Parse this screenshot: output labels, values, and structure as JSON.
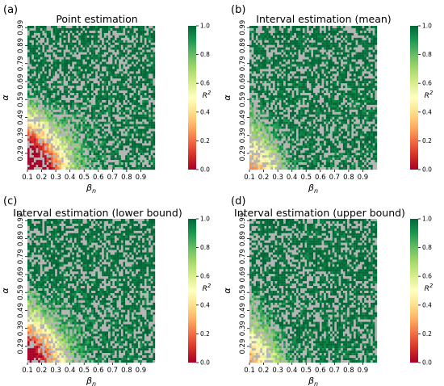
{
  "colors": {
    "missing": "#b4b4b4",
    "colormap": [
      "#a50026",
      "#d73027",
      "#f46d43",
      "#fdae61",
      "#fee08b",
      "#ffffbf",
      "#d9ef8b",
      "#a6d96a",
      "#66bd63",
      "#1a9850",
      "#006837"
    ]
  },
  "chart_data": [
    {
      "type": "heatmap",
      "letter": "(a)",
      "title": "Point estimation",
      "xlabel": "β",
      "xlabel_sub": "n",
      "ylabel": "α",
      "xlim": [
        0.1,
        1.0
      ],
      "ylim": [
        0.2,
        1.0
      ],
      "xticks": [
        "0.1",
        "0.2",
        "0.3",
        "0.4",
        "0.5",
        "0.6",
        "0.7",
        "0.8",
        "0.9"
      ],
      "yticks": [
        "0.29",
        "0.39",
        "0.49",
        "0.59",
        "0.69",
        "0.79",
        "0.89",
        "0.99"
      ],
      "grid_cols": 60,
      "grid_rows": 60,
      "missing_fraction": 0.35,
      "low_region_strength": 1.0,
      "colorbar": {
        "label": "R",
        "label_sup": "2",
        "range": [
          0.0,
          1.0
        ],
        "ticks": [
          "0.0",
          "0.2",
          "0.4",
          "0.6",
          "0.8",
          "1.0"
        ]
      }
    },
    {
      "type": "heatmap",
      "letter": "(b)",
      "title": "Interval estimation (mean)",
      "xlabel": "β",
      "xlabel_sub": "n",
      "ylabel": "α",
      "xlim": [
        0.1,
        1.0
      ],
      "ylim": [
        0.2,
        1.0
      ],
      "xticks": [
        "0.1",
        "0.2",
        "0.3",
        "0.4",
        "0.5",
        "0.6",
        "0.7",
        "0.8",
        "0.9"
      ],
      "yticks": [
        "0.29",
        "0.39",
        "0.49",
        "0.59",
        "0.69",
        "0.79",
        "0.89",
        "0.99"
      ],
      "grid_cols": 60,
      "grid_rows": 60,
      "missing_fraction": 0.35,
      "low_region_strength": 0.35,
      "colorbar": {
        "label": "R",
        "label_sup": "2",
        "range": [
          0.0,
          1.0
        ],
        "ticks": [
          "0.0",
          "0.2",
          "0.4",
          "0.6",
          "0.8",
          "1.0"
        ]
      }
    },
    {
      "type": "heatmap",
      "letter": "(c)",
      "title": "Interval estimation (lower bound)",
      "xlabel": "β",
      "xlabel_sub": "n",
      "ylabel": "α",
      "xlim": [
        0.1,
        1.0
      ],
      "ylim": [
        0.2,
        1.0
      ],
      "xticks": [
        "0.1",
        "0.2",
        "0.3",
        "0.4",
        "0.5",
        "0.6",
        "0.7",
        "0.8",
        "0.9"
      ],
      "yticks": [
        "0.29",
        "0.39",
        "0.49",
        "0.59",
        "0.69",
        "0.79",
        "0.89",
        "0.99"
      ],
      "grid_cols": 60,
      "grid_rows": 60,
      "missing_fraction": 0.35,
      "low_region_strength": 0.8,
      "colorbar": {
        "label": "R",
        "label_sup": "2",
        "range": [
          0.0,
          1.0
        ],
        "ticks": [
          "0.0",
          "0.2",
          "0.4",
          "0.6",
          "0.8",
          "1.0"
        ]
      }
    },
    {
      "type": "heatmap",
      "letter": "(d)",
      "title": "Interval estimation (upper bound)",
      "xlabel": "β",
      "xlabel_sub": "n",
      "ylabel": "α",
      "xlim": [
        0.1,
        1.0
      ],
      "ylim": [
        0.2,
        1.0
      ],
      "xticks": [
        "0.1",
        "0.2",
        "0.3",
        "0.4",
        "0.5",
        "0.6",
        "0.7",
        "0.8",
        "0.9"
      ],
      "yticks": [
        "0.29",
        "0.39",
        "0.49",
        "0.59",
        "0.69",
        "0.79",
        "0.89",
        "0.99"
      ],
      "grid_cols": 60,
      "grid_rows": 60,
      "missing_fraction": 0.35,
      "low_region_strength": 0.3,
      "colorbar": {
        "label": "R",
        "label_sup": "2",
        "range": [
          0.0,
          1.0
        ],
        "ticks": [
          "0.0",
          "0.2",
          "0.4",
          "0.6",
          "0.8",
          "1.0"
        ]
      }
    }
  ]
}
